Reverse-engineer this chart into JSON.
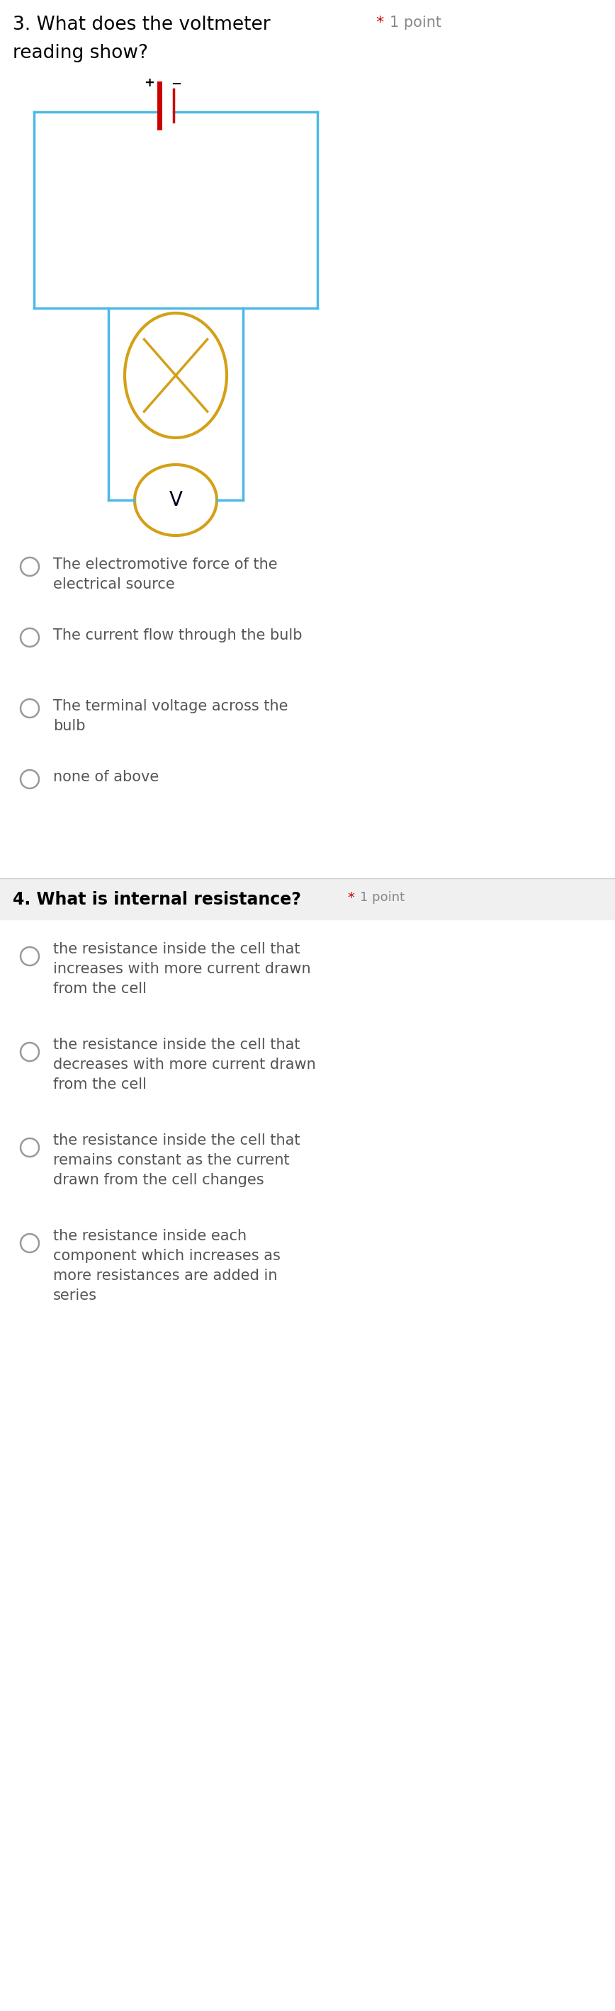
{
  "q3_title": "3. What does the voltmeter",
  "q3_title2": "reading show?",
  "q3_star": "*  1 point",
  "q3_options": [
    "The electromotive force of the\nelectrical source",
    "The current flow through the bulb",
    "The terminal voltage across the\nbulb",
    "none of above"
  ],
  "q4_title": "4. What is internal resistance?",
  "q4_star": "  1 point",
  "q4_options": [
    "the resistance inside the cell that\nincreases with more current drawn\nfrom the cell",
    "the resistance inside the cell that\ndecreases with more current drawn\nfrom the cell",
    "the resistance inside the cell that\nremains constant as the current\ndrawn from the cell changes",
    "the resistance inside each\ncomponent which increases as\nmore resistances are added in\nseries"
  ],
  "circuit_color": "#4db8e8",
  "bulb_color": "#d4a017",
  "battery_color": "#cc0000",
  "text_color": "#000000",
  "option_color": "#555555",
  "radio_color": "#999999",
  "bg_color": "#ffffff",
  "divider_color": "#cccccc"
}
